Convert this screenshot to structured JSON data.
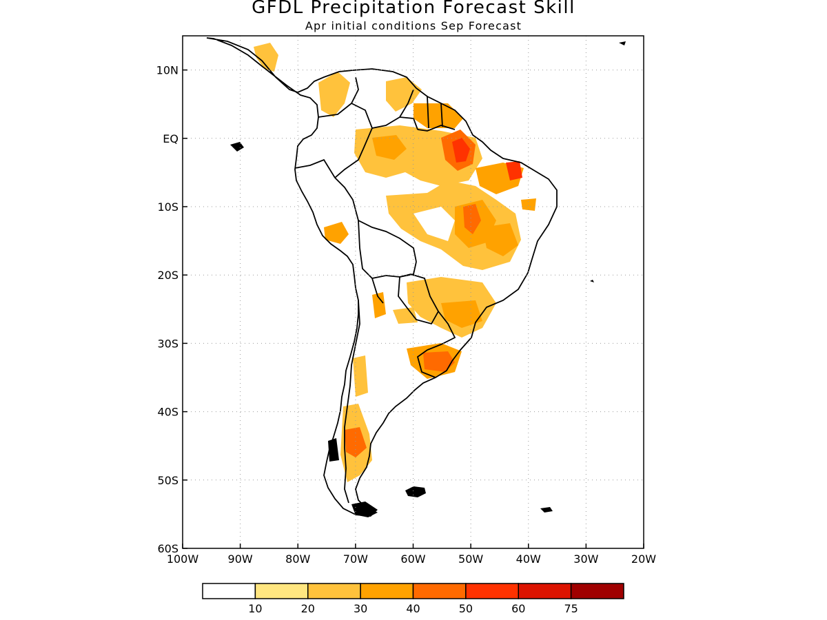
{
  "title": "GFDL Precipitation Forecast Skill",
  "subtitle": "Apr initial conditions  Sep Forecast",
  "map": {
    "lon_range": [
      -100,
      -20
    ],
    "lat_range": [
      -60,
      15
    ],
    "x_tick_labels": [
      "100W",
      "90W",
      "80W",
      "70W",
      "60W",
      "50W",
      "40W",
      "30W",
      "20W"
    ],
    "y_tick_labels": [
      "10N",
      "EQ",
      "10S",
      "20S",
      "30S",
      "40S",
      "50S",
      "60S"
    ],
    "grid": "dotted"
  },
  "colorbar": {
    "labels": [
      "10",
      "20",
      "30",
      "40",
      "50",
      "60",
      "75"
    ],
    "colors": [
      "#ffffff",
      "#ffe680",
      "#ffc23c",
      "#ffa200",
      "#ff6a00",
      "#ff3200",
      "#dc1400",
      "#a00000"
    ]
  }
}
